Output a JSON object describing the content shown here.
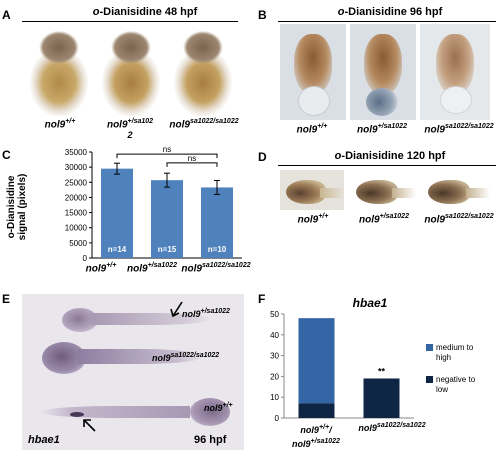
{
  "panels": {
    "A": {
      "label": "A",
      "title_prefix": "o",
      "title_rest": "-Dianisidine 48 hpf",
      "genotypes": [
        {
          "base": "nol9",
          "sup": "+/+",
          "sub": ""
        },
        {
          "base": "nol9",
          "sup": "+/sa102",
          "sub": "2"
        },
        {
          "base": "nol9",
          "sup": "sa1022/sa1022",
          "sub": ""
        }
      ]
    },
    "B": {
      "label": "B",
      "title_prefix": "o",
      "title_rest": "-Dianisidine 96 hpf",
      "genotypes": [
        {
          "base": "nol9",
          "sup": "+/+"
        },
        {
          "base": "nol9",
          "sup": "+/sa1022"
        },
        {
          "base": "nol9",
          "sup": "sa1022/sa1022"
        }
      ]
    },
    "C": {
      "label": "C",
      "ylabel_line1": "o-Dianisidine",
      "ylabel_line2": "signal (pixels)",
      "sig1": "ns",
      "sig2": "ns",
      "genotypes": [
        {
          "base": "nol9",
          "sup": "+/+"
        },
        {
          "base": "nol9",
          "sup": "+/sa1022"
        },
        {
          "base": "nol9",
          "sup": "sa1022/sa1022"
        }
      ]
    },
    "D": {
      "label": "D",
      "title_prefix": "o",
      "title_rest": "-Dianisidine 120 hpf",
      "genotypes": [
        {
          "base": "nol9",
          "sup": "+/+"
        },
        {
          "base": "nol9",
          "sup": "+/sa1022"
        },
        {
          "base": "nol9",
          "sup": "sa1022/sa1022"
        }
      ]
    },
    "E": {
      "label": "E",
      "gene": "hbae1",
      "stage": "96 hpf",
      "genotypes": [
        {
          "base": "nol9",
          "sup": "+/sa1022"
        },
        {
          "base": "nol9",
          "sup": "sa1022/sa1022"
        },
        {
          "base": "nol9",
          "sup": "+/+"
        }
      ]
    },
    "F": {
      "label": "F",
      "sig": "**",
      "legend": [
        "medium to high",
        "negative to low"
      ],
      "xlabels": [
        {
          "line1_base": "nol9",
          "line1_sup": "+/+",
          "line1_tail": "/",
          "line2_base": "nol9",
          "line2_sup": "+/sa1022"
        },
        {
          "line1_base": "nol9",
          "line1_sup": "sa1022/sa1022",
          "line1_tail": "",
          "line2_base": "",
          "line2_sup": ""
        }
      ]
    }
  },
  "chart_data": [
    {
      "type": "bar",
      "panel": "C",
      "categories": [
        "nol9+/+",
        "nol9+/sa1022",
        "nol9sa1022/sa1022"
      ],
      "values": [
        29500,
        25700,
        23300
      ],
      "errors": [
        1800,
        2300,
        2300
      ],
      "bar_labels": [
        "n=14",
        "n=15",
        "n=10"
      ],
      "ylabel": "o-Dianisidine signal (pixels)",
      "ylim": [
        0,
        35000
      ],
      "yticks": [
        "0",
        "5000",
        "10000",
        "15000",
        "20000",
        "25000",
        "30000",
        "35000"
      ],
      "color": "#4f81bd"
    },
    {
      "type": "bar",
      "panel": "F",
      "title": "hbae1",
      "categories": [
        "nol9+/+/nol9+/sa1022",
        "nol9sa1022/sa1022"
      ],
      "stacked": true,
      "series": [
        {
          "name": "negative to low",
          "values": [
            7,
            19
          ],
          "color": "#0f2544"
        },
        {
          "name": "medium to high",
          "values": [
            41,
            0
          ],
          "color": "#3465a4"
        }
      ],
      "ylim": [
        0,
        50
      ],
      "yticks": [
        "0",
        "10",
        "20",
        "30",
        "40",
        "50"
      ]
    }
  ]
}
